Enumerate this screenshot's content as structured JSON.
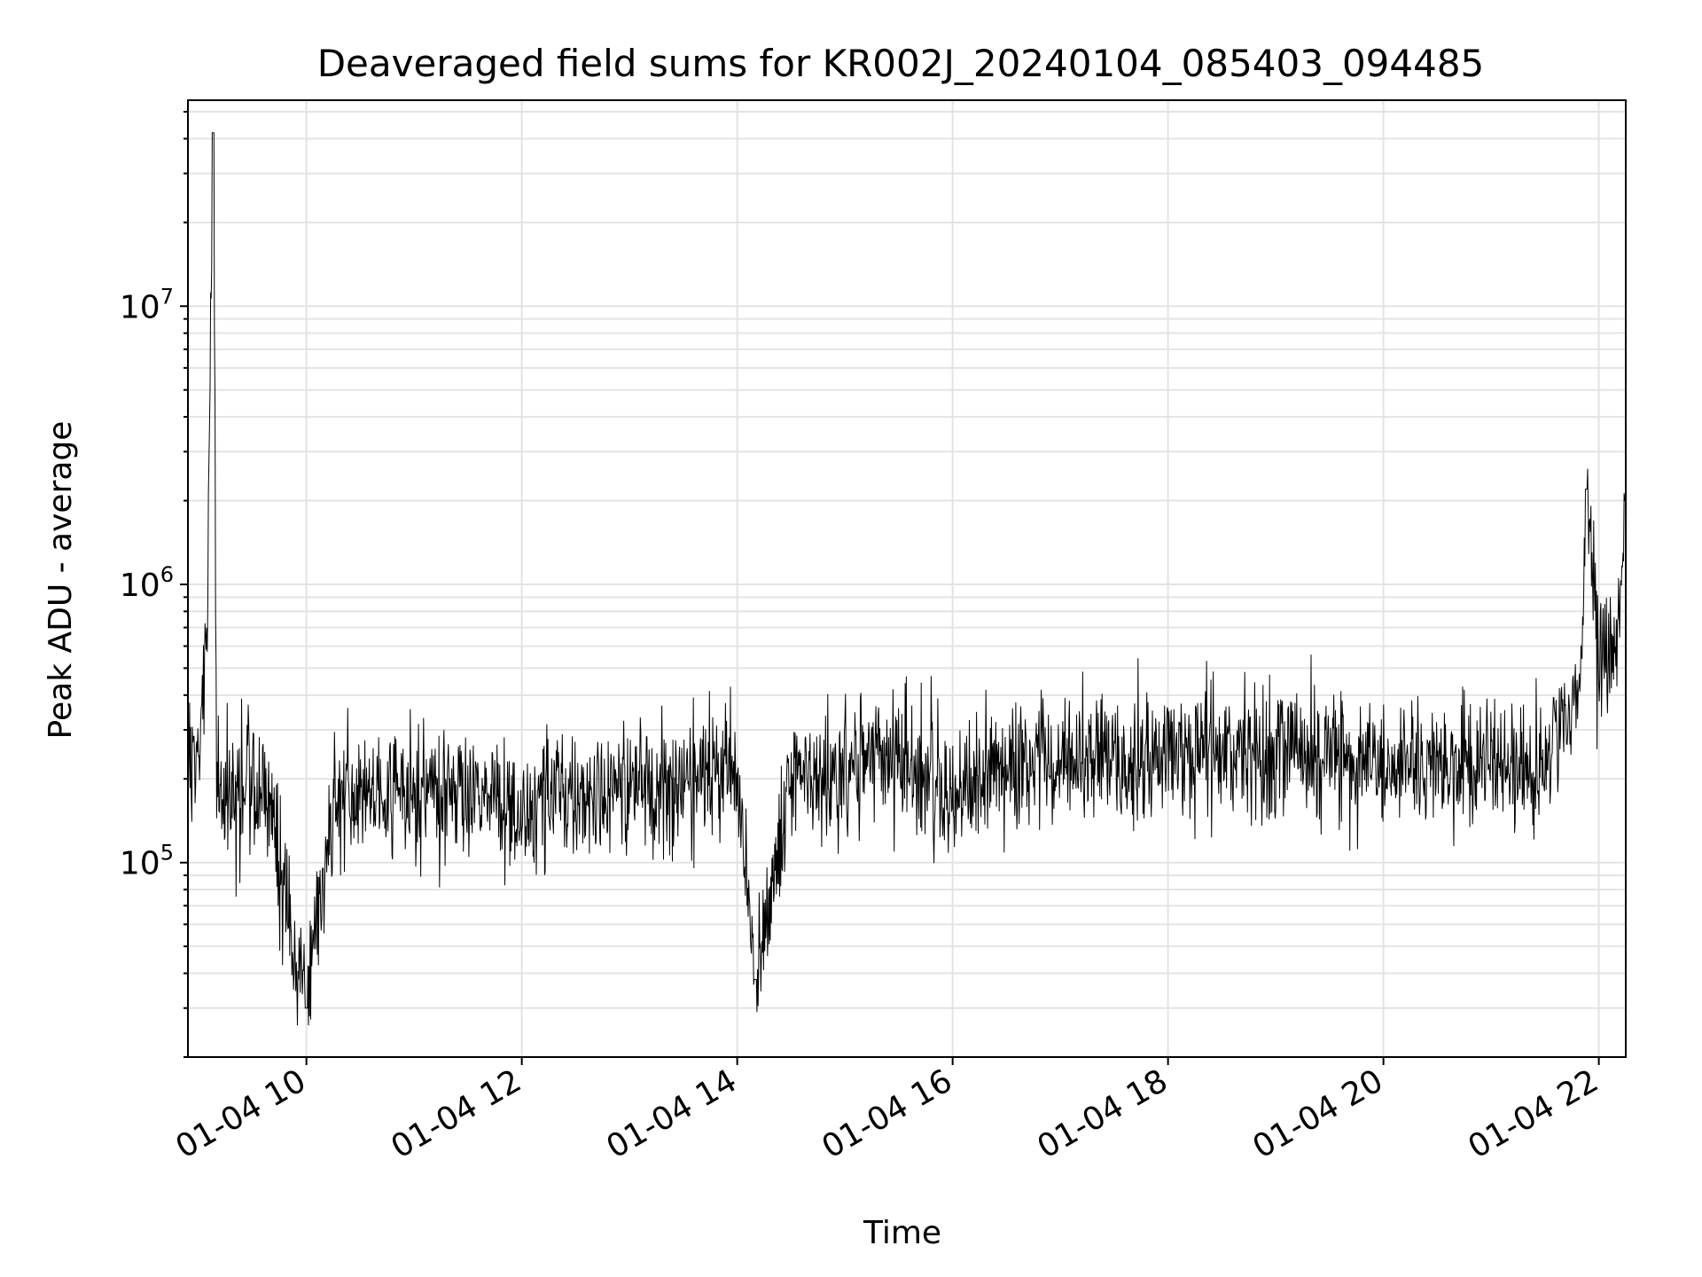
{
  "chart_data": {
    "type": "line",
    "title": "Deaveraged field sums for KR002J_20240104_085403_094485",
    "xlabel": "Time",
    "ylabel": "Peak ADU - average",
    "yscale": "log",
    "ylim": [
      20000,
      55000000
    ],
    "xlim": [
      "2024-01-04 08:54",
      "2024-01-04 22:15"
    ],
    "grid": true,
    "x_ticks": [
      {
        "time": "2024-01-04 10:00",
        "label": "01-04 10"
      },
      {
        "time": "2024-01-04 12:00",
        "label": "01-04 12"
      },
      {
        "time": "2024-01-04 14:00",
        "label": "01-04 14"
      },
      {
        "time": "2024-01-04 16:00",
        "label": "01-04 16"
      },
      {
        "time": "2024-01-04 18:00",
        "label": "01-04 18"
      },
      {
        "time": "2024-01-04 20:00",
        "label": "01-04 20"
      },
      {
        "time": "2024-01-04 22:00",
        "label": "01-04 22"
      }
    ],
    "y_ticks": [
      {
        "value": 100000,
        "base": "10",
        "exp": "5"
      },
      {
        "value": 1000000,
        "base": "10",
        "exp": "6"
      },
      {
        "value": 10000000,
        "base": "10",
        "exp": "7"
      }
    ],
    "series": [
      {
        "color": "#000000",
        "points": [
          [
            "2024-01-04 08:54",
            200000
          ],
          [
            "2024-01-04 09:00",
            260000
          ],
          [
            "2024-01-04 09:05",
            700000
          ],
          [
            "2024-01-04 09:08",
            42000000
          ],
          [
            "2024-01-04 09:10",
            200000
          ],
          [
            "2024-01-04 09:20",
            170000
          ],
          [
            "2024-01-04 09:30",
            230000
          ],
          [
            "2024-01-04 09:40",
            150000
          ],
          [
            "2024-01-04 10:00",
            30000
          ],
          [
            "2024-01-04 10:15",
            160000
          ],
          [
            "2024-01-04 10:30",
            190000
          ],
          [
            "2024-01-04 11:00",
            170000
          ],
          [
            "2024-01-04 11:30",
            180000
          ],
          [
            "2024-01-04 12:00",
            160000
          ],
          [
            "2024-01-04 12:30",
            175000
          ],
          [
            "2024-01-04 13:00",
            190000
          ],
          [
            "2024-01-04 13:30",
            200000
          ],
          [
            "2024-01-04 14:00",
            210000
          ],
          [
            "2024-01-04 14:10",
            38000
          ],
          [
            "2024-01-04 14:30",
            200000
          ],
          [
            "2024-01-04 15:00",
            210000
          ],
          [
            "2024-01-04 15:30",
            230000
          ],
          [
            "2024-01-04 16:00",
            190000
          ],
          [
            "2024-01-04 16:30",
            220000
          ],
          [
            "2024-01-04 17:00",
            230000
          ],
          [
            "2024-01-04 17:30",
            220000
          ],
          [
            "2024-01-04 18:00",
            250000
          ],
          [
            "2024-01-04 18:30",
            260000
          ],
          [
            "2024-01-04 19:00",
            250000
          ],
          [
            "2024-01-04 19:30",
            240000
          ],
          [
            "2024-01-04 20:00",
            230000
          ],
          [
            "2024-01-04 20:30",
            230000
          ],
          [
            "2024-01-04 21:00",
            240000
          ],
          [
            "2024-01-04 21:30",
            220000
          ],
          [
            "2024-01-04 21:50",
            450000
          ],
          [
            "2024-01-04 21:53",
            2200000
          ],
          [
            "2024-01-04 22:00",
            550000
          ],
          [
            "2024-01-04 22:10",
            600000
          ],
          [
            "2024-01-04 22:15",
            2000000
          ]
        ]
      }
    ]
  }
}
